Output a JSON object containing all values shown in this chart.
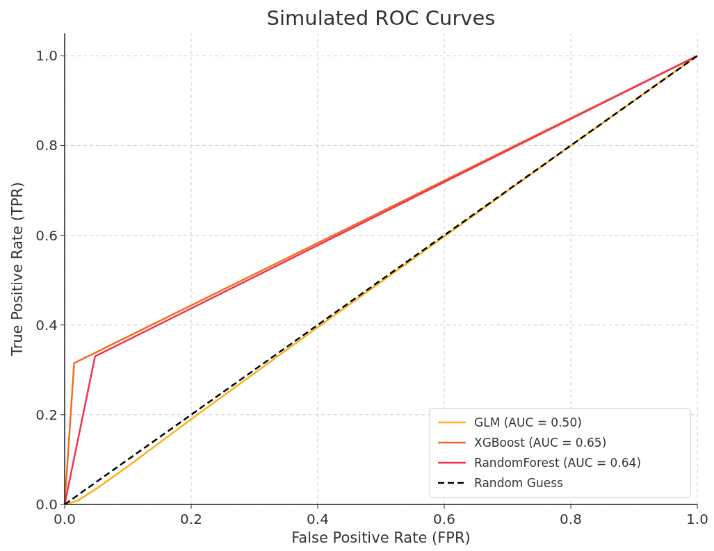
{
  "chart_data": {
    "type": "line",
    "title": "Simulated ROC Curves",
    "xlabel": "False Positive Rate (FPR)",
    "ylabel": "True Positive Rate (TPR)",
    "xlim": [
      0,
      1
    ],
    "ylim": [
      0,
      1.05
    ],
    "xticks": [
      {
        "value": 0,
        "label": "0.0"
      },
      0.2,
      0.4,
      0.6,
      0.8,
      {
        "value": 1,
        "label": "1.0"
      }
    ],
    "yticks": [
      {
        "value": 0,
        "label": "0.0"
      },
      0.2,
      0.4,
      0.6,
      0.8,
      {
        "value": 1,
        "label": "1.0"
      }
    ],
    "grid": true,
    "legend": "bottom right",
    "marker": "none",
    "series": [
      {
        "name": "GLM (AUC = 0.50)",
        "color": "#fbb117",
        "line_style": "solid",
        "x": [
          0,
          0.02,
          0.05,
          0.1,
          0.2,
          0.4,
          0.6,
          0.8,
          1
        ],
        "values": [
          0,
          0.008,
          0.035,
          0.085,
          0.19,
          0.395,
          0.597,
          0.8,
          1
        ]
      },
      {
        "name": "XGBoost (AUC = 0.65)",
        "color": "#f26b21",
        "line_style": "solid",
        "x": [
          0,
          0.015,
          1
        ],
        "values": [
          0,
          0.315,
          1
        ]
      },
      {
        "name": "RandomForest (AUC = 0.64)",
        "color": "#f2334f",
        "line_style": "solid",
        "x": [
          0,
          0.048,
          1
        ],
        "values": [
          0,
          0.33,
          1
        ]
      },
      {
        "name": "Random Guess",
        "color": "#000000",
        "line_style": "dashed",
        "x": [
          0,
          1
        ],
        "values": [
          0,
          1
        ]
      }
    ]
  }
}
